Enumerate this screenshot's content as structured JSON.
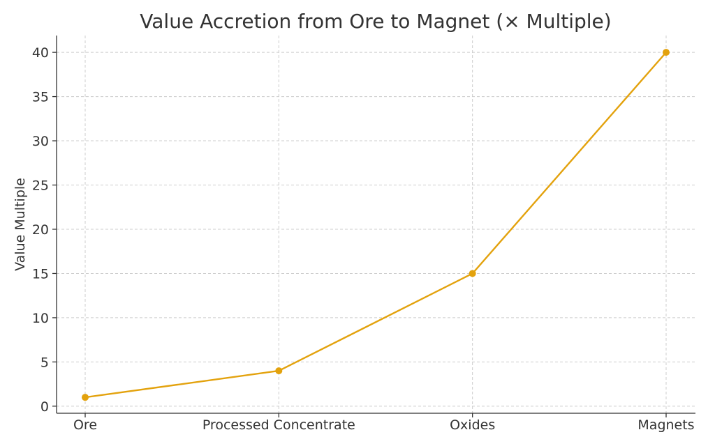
{
  "chart_data": {
    "type": "line",
    "title": "Value Accretion from Ore to Magnet (× Multiple)",
    "xlabel": "",
    "ylabel": "Value Multiple",
    "categories": [
      "Ore",
      "Processed Concentrate",
      "Oxides",
      "Magnets"
    ],
    "series": [
      {
        "name": "Value Multiple",
        "values": [
          1,
          4,
          15,
          40
        ]
      }
    ],
    "ylim": [
      -0.8,
      41.9
    ],
    "yticks": [
      0,
      5,
      10,
      15,
      20,
      25,
      30,
      35,
      40
    ],
    "grid": true,
    "line_color": "#e3a20d"
  }
}
